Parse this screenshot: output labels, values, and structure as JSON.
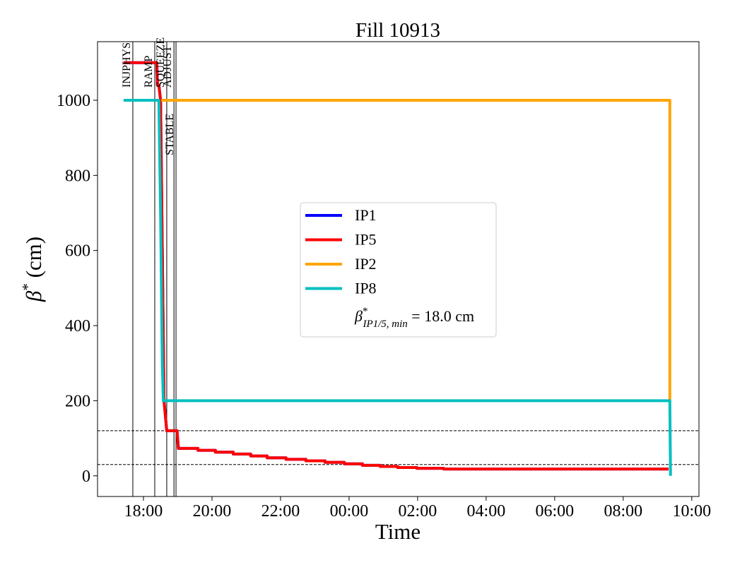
{
  "chart_data": {
    "type": "line",
    "title": "Fill 10913",
    "xlabel": "Time",
    "ylabel": [
      "β",
      "*",
      " (cm)"
    ],
    "xlim": [
      16.66,
      34.21
    ],
    "ylim": [
      -55,
      1156
    ],
    "xticks": [
      {
        "value": 18,
        "label": "18:00"
      },
      {
        "value": 20,
        "label": "20:00"
      },
      {
        "value": 22,
        "label": "22:00"
      },
      {
        "value": 24,
        "label": "00:00"
      },
      {
        "value": 26,
        "label": "02:00"
      },
      {
        "value": 28,
        "label": "04:00"
      },
      {
        "value": 30,
        "label": "06:00"
      },
      {
        "value": 32,
        "label": "08:00"
      },
      {
        "value": 34,
        "label": "10:00"
      }
    ],
    "yticks": [
      0,
      200,
      400,
      600,
      800,
      1000
    ],
    "phases": [
      {
        "label": "INJPHYS",
        "x": 17.69
      },
      {
        "label": "RAMP",
        "x": 18.33
      },
      {
        "label": "SQUEEZE",
        "x": 18.68
      },
      {
        "label": "ADJUST",
        "x": 18.89
      },
      {
        "label": "STABLE",
        "x": 18.95
      }
    ],
    "hlines": [
      120,
      30
    ],
    "series": [
      {
        "name": "IP1",
        "color": "#0000ff",
        "x": [
          17.42,
          18.39,
          18.41,
          18.45,
          18.5,
          18.6,
          18.68,
          18.98,
          19.02,
          19.59,
          19.59,
          20.1,
          20.1,
          20.62,
          20.62,
          21.13,
          21.13,
          21.61,
          21.61,
          22.16,
          22.16,
          22.74,
          22.74,
          23.3,
          23.3,
          23.86,
          23.86,
          24.39,
          24.39,
          24.91,
          24.91,
          25.42,
          25.42,
          25.98,
          25.98,
          26.76,
          26.76,
          33.32
        ],
        "values": [
          1100,
          1100,
          1040,
          1040,
          1000,
          200,
          120,
          120,
          73,
          73,
          68,
          68,
          63,
          63,
          58,
          58,
          53,
          53,
          48,
          48,
          44,
          44,
          40,
          40,
          36,
          36,
          32,
          32,
          28,
          28,
          25,
          25,
          22,
          22,
          20,
          20,
          18,
          18
        ]
      },
      {
        "name": "IP5",
        "color": "#ff0000",
        "x": [
          17.42,
          18.39,
          18.41,
          18.45,
          18.5,
          18.6,
          18.68,
          18.98,
          19.02,
          19.59,
          19.59,
          20.1,
          20.1,
          20.62,
          20.62,
          21.13,
          21.13,
          21.61,
          21.61,
          22.16,
          22.16,
          22.74,
          22.74,
          23.3,
          23.3,
          23.86,
          23.86,
          24.39,
          24.39,
          24.91,
          24.91,
          25.42,
          25.42,
          25.98,
          25.98,
          26.76,
          26.76,
          33.32
        ],
        "values": [
          1100,
          1100,
          1040,
          1040,
          1000,
          200,
          120,
          120,
          73,
          73,
          68,
          68,
          63,
          63,
          58,
          58,
          53,
          53,
          48,
          48,
          44,
          44,
          40,
          40,
          36,
          36,
          32,
          32,
          28,
          28,
          25,
          25,
          22,
          22,
          20,
          20,
          18,
          18
        ]
      },
      {
        "name": "IP2",
        "color": "#ffa500",
        "x": [
          18.52,
          33.36,
          33.36
        ],
        "values": [
          1000,
          1000,
          200
        ]
      },
      {
        "name": "IP8",
        "color": "#00bfbf",
        "x": [
          17.42,
          18.45,
          18.5,
          18.55,
          18.58,
          33.36,
          33.38
        ],
        "values": [
          1000,
          1000,
          700,
          300,
          200,
          200,
          0
        ]
      }
    ],
    "legend_note": [
      "β",
      "*",
      "IP1/5, min",
      " = 18.0 cm"
    ],
    "legend_position": "center"
  }
}
